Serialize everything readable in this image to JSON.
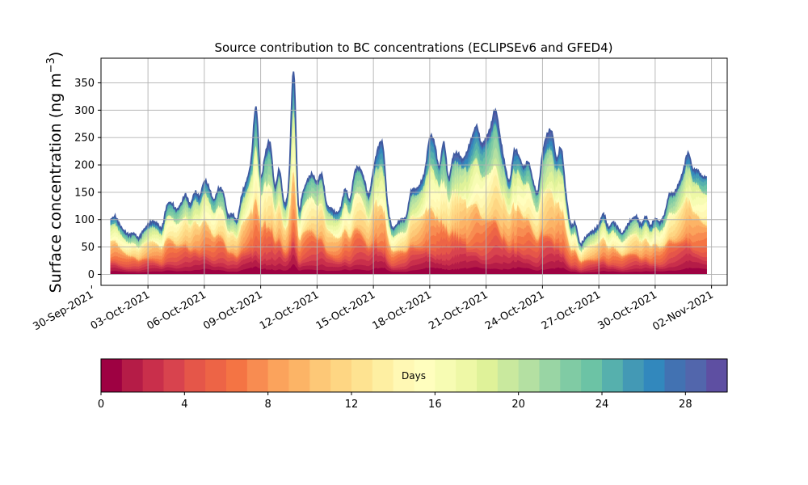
{
  "chart_data": {
    "type": "area",
    "title": "Source contribution to BC concentrations (ECLIPSEv6 and GFED4)",
    "ylabel_main": "Surface concentration (ng m",
    "ylabel_exp": "−3",
    "ylabel_close": ")",
    "ylim": [
      -20,
      395
    ],
    "xlim": [
      "2021-09-30T12:00",
      "2021-11-02T20:00"
    ],
    "grid": true,
    "yticks": [
      "0",
      "50",
      "100",
      "150",
      "200",
      "250",
      "300",
      "350"
    ],
    "xticks": [
      {
        "date": "2021-09-30",
        "label": "30-Sep-2021"
      },
      {
        "date": "2021-10-03",
        "label": "03-Oct-2021"
      },
      {
        "date": "2021-10-06",
        "label": "06-Oct-2021"
      },
      {
        "date": "2021-10-09",
        "label": "09-Oct-2021"
      },
      {
        "date": "2021-10-12",
        "label": "12-Oct-2021"
      },
      {
        "date": "2021-10-15",
        "label": "15-Oct-2021"
      },
      {
        "date": "2021-10-18",
        "label": "18-Oct-2021"
      },
      {
        "date": "2021-10-21",
        "label": "21-Oct-2021"
      },
      {
        "date": "2021-10-24",
        "label": "24-Oct-2021"
      },
      {
        "date": "2021-10-27",
        "label": "27-Oct-2021"
      },
      {
        "date": "2021-10-30",
        "label": "30-Oct-2021"
      },
      {
        "date": "2021-11-02",
        "label": "02-Nov-2021"
      }
    ],
    "total_concentration": {
      "dates": [
        "2021-10-01T00:00",
        "2021-10-01T06:00",
        "2021-10-01T12:00",
        "2021-10-01T18:00",
        "2021-10-02T00:00",
        "2021-10-02T06:00",
        "2021-10-02T12:00",
        "2021-10-02T18:00",
        "2021-10-03T00:00",
        "2021-10-03T06:00",
        "2021-10-03T12:00",
        "2021-10-03T18:00",
        "2021-10-04T00:00",
        "2021-10-04T06:00",
        "2021-10-04T12:00",
        "2021-10-04T18:00",
        "2021-10-05T00:00",
        "2021-10-05T06:00",
        "2021-10-05T12:00",
        "2021-10-05T18:00",
        "2021-10-06T00:00",
        "2021-10-06T06:00",
        "2021-10-06T12:00",
        "2021-10-06T18:00",
        "2021-10-07T00:00",
        "2021-10-07T06:00",
        "2021-10-07T12:00",
        "2021-10-07T18:00",
        "2021-10-08T00:00",
        "2021-10-08T06:00",
        "2021-10-08T12:00",
        "2021-10-08T18:00",
        "2021-10-09T00:00",
        "2021-10-09T06:00",
        "2021-10-09T12:00",
        "2021-10-09T18:00",
        "2021-10-10T00:00",
        "2021-10-10T06:00",
        "2021-10-10T12:00",
        "2021-10-10T18:00",
        "2021-10-11T00:00",
        "2021-10-11T06:00",
        "2021-10-11T12:00",
        "2021-10-11T18:00",
        "2021-10-12T00:00",
        "2021-10-12T06:00",
        "2021-10-12T12:00",
        "2021-10-12T18:00",
        "2021-10-13T00:00",
        "2021-10-13T06:00",
        "2021-10-13T12:00",
        "2021-10-13T18:00",
        "2021-10-14T00:00",
        "2021-10-14T06:00",
        "2021-10-14T12:00",
        "2021-10-14T18:00",
        "2021-10-15T00:00",
        "2021-10-15T06:00",
        "2021-10-15T12:00",
        "2021-10-15T18:00",
        "2021-10-16T00:00",
        "2021-10-16T06:00",
        "2021-10-16T12:00",
        "2021-10-16T18:00",
        "2021-10-17T00:00",
        "2021-10-17T06:00",
        "2021-10-17T12:00",
        "2021-10-17T18:00",
        "2021-10-18T00:00",
        "2021-10-18T06:00",
        "2021-10-18T12:00",
        "2021-10-18T18:00",
        "2021-10-19T00:00",
        "2021-10-19T06:00",
        "2021-10-19T12:00",
        "2021-10-19T18:00",
        "2021-10-20T00:00",
        "2021-10-20T06:00",
        "2021-10-20T12:00",
        "2021-10-20T18:00",
        "2021-10-21T00:00",
        "2021-10-21T06:00",
        "2021-10-21T12:00",
        "2021-10-21T18:00",
        "2021-10-22T00:00",
        "2021-10-22T06:00",
        "2021-10-22T12:00",
        "2021-10-22T18:00",
        "2021-10-23T00:00",
        "2021-10-23T06:00",
        "2021-10-23T12:00",
        "2021-10-23T18:00",
        "2021-10-24T00:00",
        "2021-10-24T06:00",
        "2021-10-24T12:00",
        "2021-10-24T18:00",
        "2021-10-25T00:00",
        "2021-10-25T06:00",
        "2021-10-25T12:00",
        "2021-10-25T18:00",
        "2021-10-26T00:00",
        "2021-10-26T06:00",
        "2021-10-26T12:00",
        "2021-10-26T18:00",
        "2021-10-27T00:00",
        "2021-10-27T06:00",
        "2021-10-27T12:00",
        "2021-10-27T18:00",
        "2021-10-28T00:00",
        "2021-10-28T06:00",
        "2021-10-28T12:00",
        "2021-10-28T18:00",
        "2021-10-29T00:00",
        "2021-10-29T06:00",
        "2021-10-29T12:00",
        "2021-10-29T18:00",
        "2021-10-30T00:00",
        "2021-10-30T06:00",
        "2021-10-30T12:00",
        "2021-10-30T18:00",
        "2021-10-31T00:00",
        "2021-10-31T06:00",
        "2021-10-31T12:00",
        "2021-10-31T18:00",
        "2021-11-01T00:00",
        "2021-11-01T06:00",
        "2021-11-01T12:00",
        "2021-11-01T18:00"
      ],
      "values": [
        100,
        105,
        90,
        78,
        72,
        75,
        66,
        80,
        90,
        96,
        92,
        85,
        125,
        130,
        118,
        128,
        145,
        128,
        150,
        142,
        170,
        158,
        135,
        155,
        150,
        108,
        110,
        100,
        145,
        170,
        210,
        305,
        180,
        220,
        240,
        160,
        190,
        130,
        170,
        372,
        130,
        150,
        172,
        182,
        168,
        182,
        130,
        120,
        112,
        120,
        155,
        135,
        185,
        195,
        175,
        145,
        190,
        230,
        235,
        130,
        85,
        92,
        100,
        105,
        150,
        155,
        165,
        190,
        250,
        240,
        195,
        240,
        175,
        215,
        220,
        210,
        225,
        250,
        270,
        238,
        250,
        270,
        300,
        250,
        200,
        170,
        225,
        215,
        195,
        205,
        170,
        150,
        220,
        255,
        260,
        210,
        230,
        148,
        90,
        92,
        55,
        65,
        75,
        80,
        90,
        110,
        85,
        95,
        85,
        75,
        88,
        100,
        105,
        90,
        105,
        88,
        102,
        95,
        110,
        145,
        148,
        165,
        190,
        222,
        192,
        190,
        178,
        178
      ]
    },
    "colorbar": {
      "label": "Days",
      "range": [
        0,
        30
      ],
      "levels": 30,
      "ticks": [
        "0",
        "4",
        "8",
        "12",
        "16",
        "20",
        "24",
        "28"
      ],
      "colors": [
        "#9e0142",
        "#b51c47",
        "#c92f4b",
        "#d8434e",
        "#e55649",
        "#ed6446",
        "#f47444",
        "#f88c51",
        "#fba35c",
        "#fcb466",
        "#fdc877",
        "#fed683",
        "#fee391",
        "#feefa2",
        "#fff8b4",
        "#fffebe",
        "#f7fcb3",
        "#eef8a6",
        "#dff299",
        "#c9e99e",
        "#b4e0a2",
        "#99d5a4",
        "#80cba4",
        "#6cc3a5",
        "#56b0ad",
        "#4399b5",
        "#3288bd",
        "#4272b2",
        "#5266ac",
        "#5e4fa2"
      ]
    }
  }
}
